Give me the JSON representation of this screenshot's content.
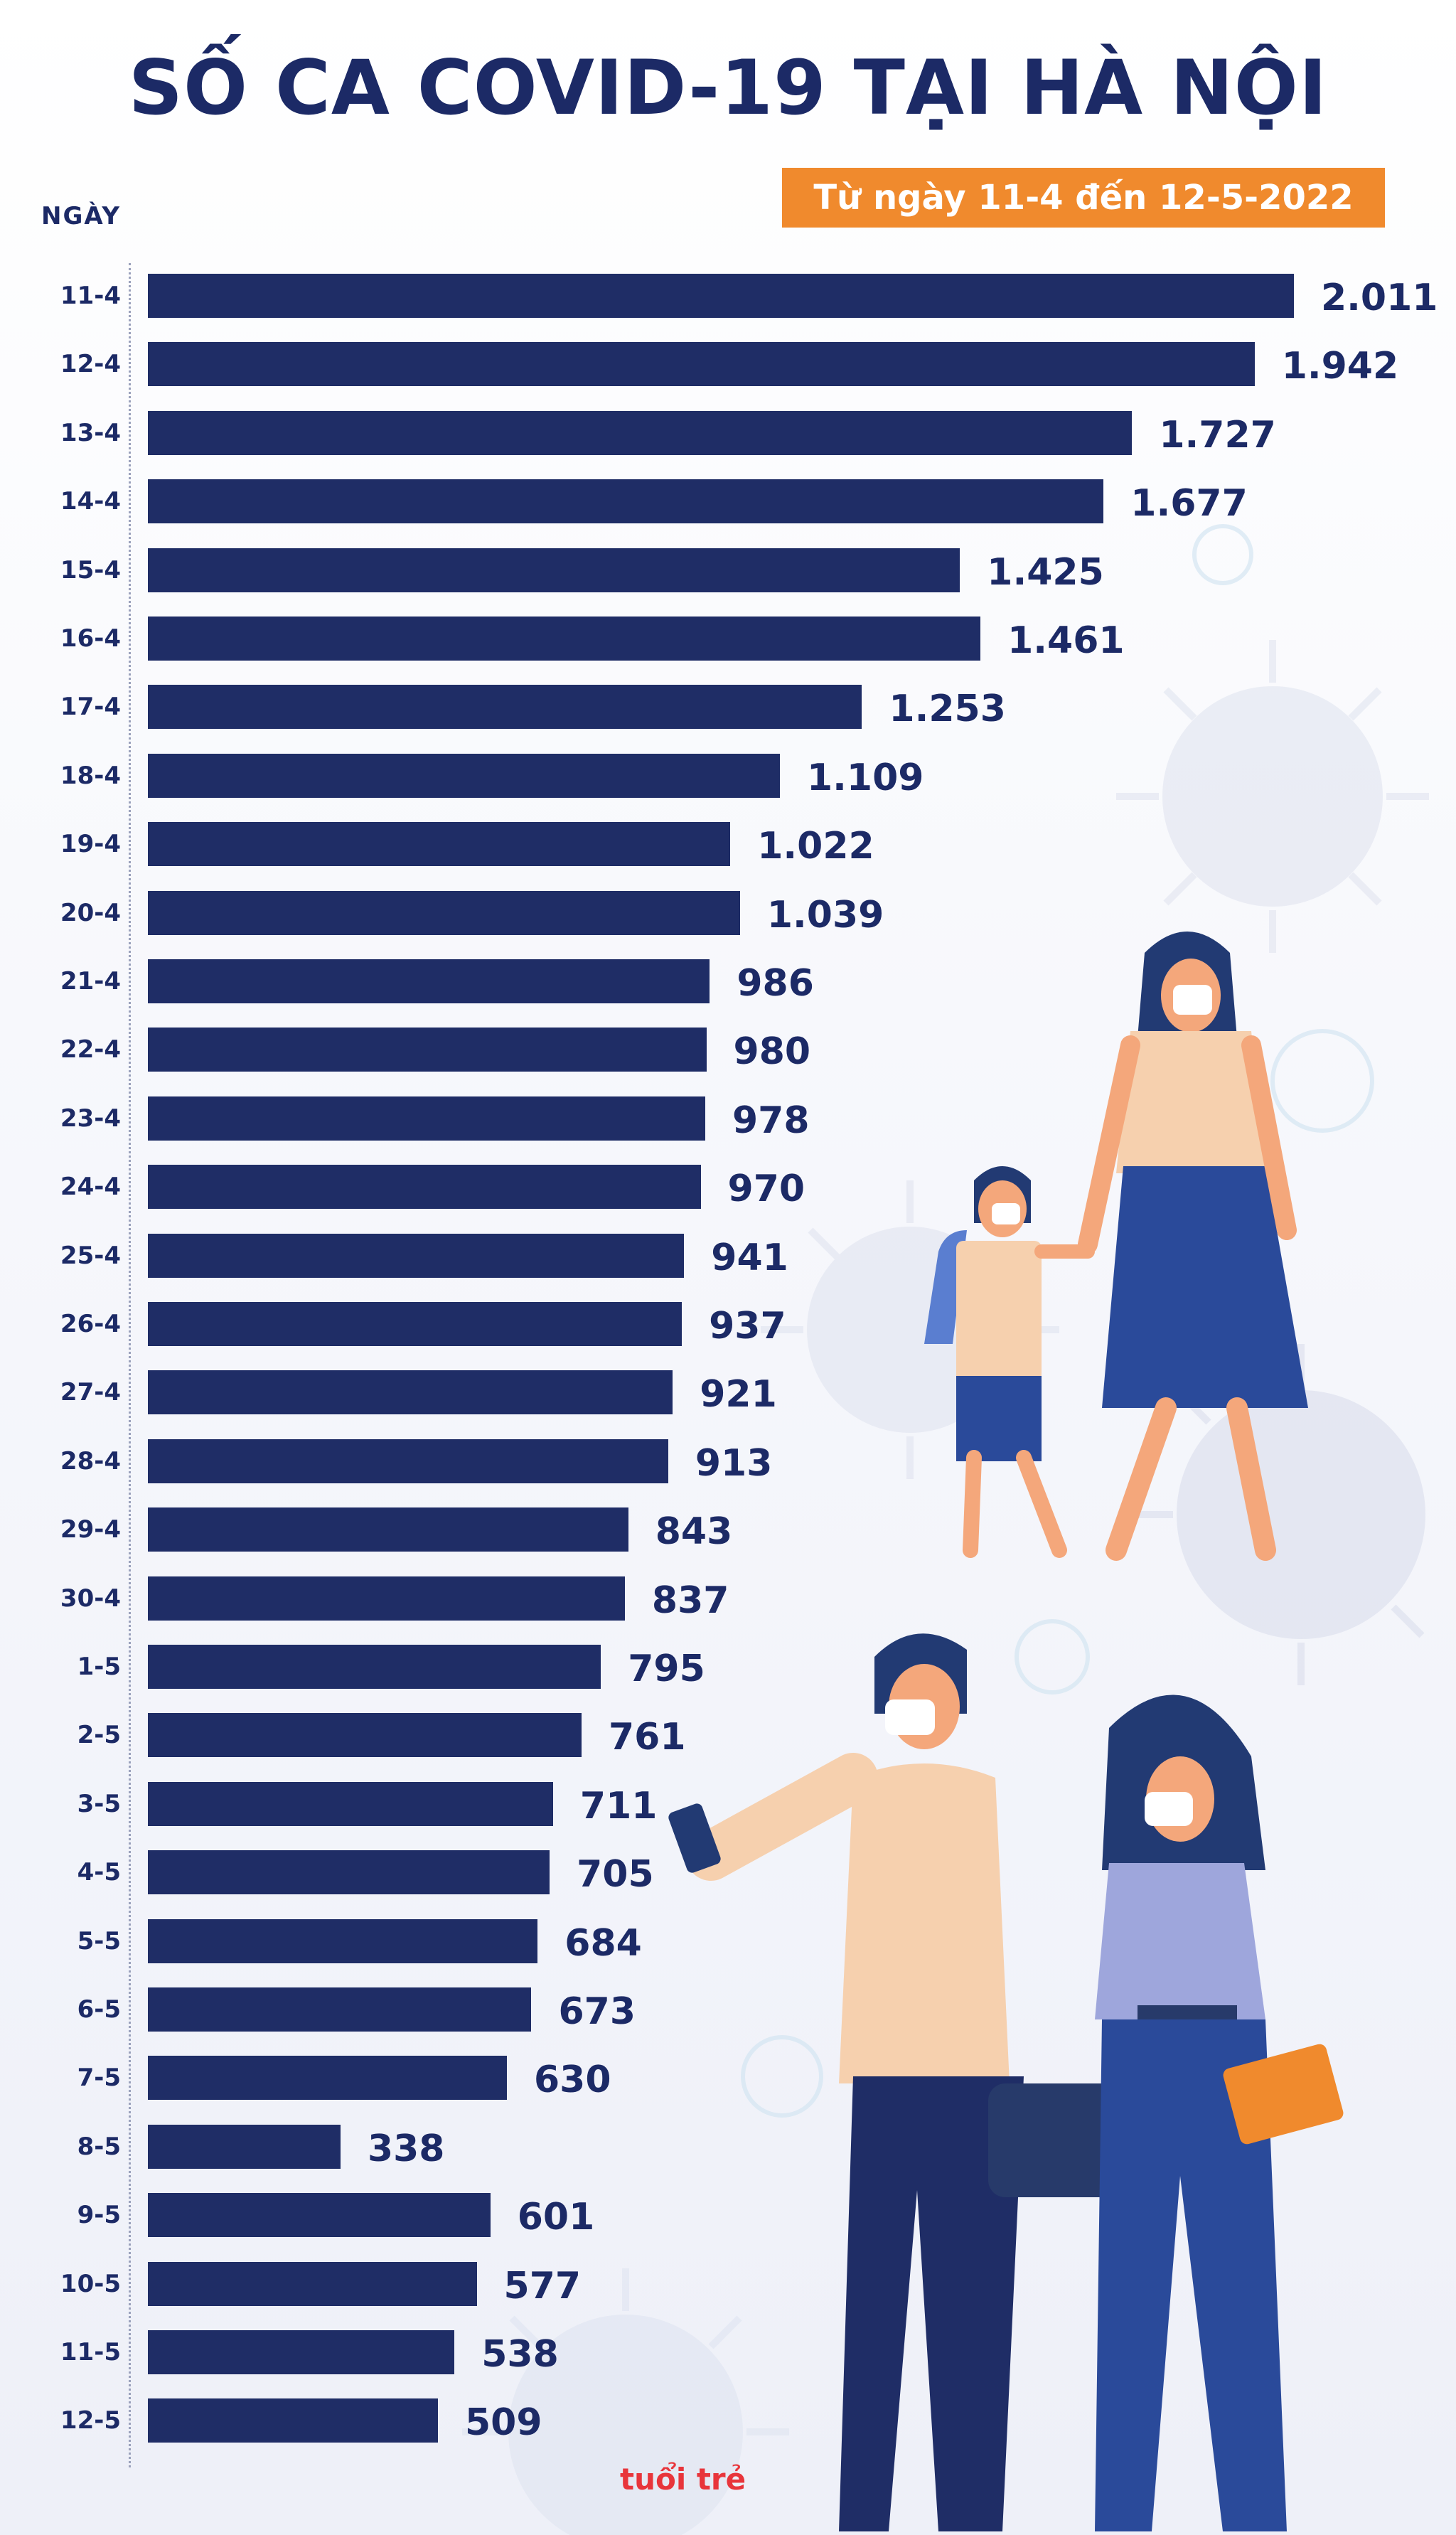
{
  "title": "SỐ CA COVID-19 TẠI HÀ NỘI",
  "date_range": "Từ ngày 11-4 đến 12-5-2022",
  "logo_text": "tuổi trẻ",
  "chart_data": {
    "type": "bar",
    "orientation": "horizontal",
    "title": "SỐ CA COVID-19 TẠI HÀ NỘI",
    "subtitle": "Từ ngày 11-4 đến 12-5-2022",
    "ylabel": "NGÀY",
    "xlim": [
      0,
      2100
    ],
    "grid": false,
    "bar_color": "#1f2d66",
    "categories": [
      "11-4",
      "12-4",
      "13-4",
      "14-4",
      "15-4",
      "16-4",
      "17-4",
      "18-4",
      "19-4",
      "20-4",
      "21-4",
      "22-4",
      "23-4",
      "24-4",
      "25-4",
      "26-4",
      "27-4",
      "28-4",
      "29-4",
      "30-4",
      "1-5",
      "2-5",
      "3-5",
      "4-5",
      "5-5",
      "6-5",
      "7-5",
      "8-5",
      "9-5",
      "10-5",
      "11-5",
      "12-5"
    ],
    "values": [
      2011,
      1942,
      1727,
      1677,
      1425,
      1461,
      1253,
      1109,
      1022,
      1039,
      986,
      980,
      978,
      970,
      941,
      937,
      921,
      913,
      843,
      837,
      795,
      761,
      711,
      705,
      684,
      673,
      630,
      338,
      601,
      577,
      538,
      509
    ],
    "value_labels": [
      "2.011",
      "1.942",
      "1.727",
      "1.677",
      "1.425",
      "1.461",
      "1.253",
      "1.109",
      "1.022",
      "1.039",
      "986",
      "980",
      "978",
      "970",
      "941",
      "937",
      "921",
      "913",
      "843",
      "837",
      "795",
      "761",
      "711",
      "705",
      "684",
      "673",
      "630",
      "338",
      "601",
      "577",
      "538",
      "509"
    ]
  },
  "colors": {
    "title": "#1c2a66",
    "bar": "#1f2d66",
    "badge": "#f08a2d",
    "logo": "#e8353b"
  }
}
